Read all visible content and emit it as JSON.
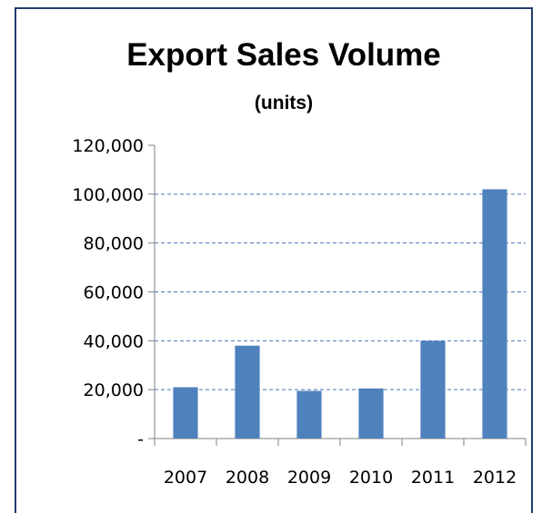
{
  "chart_data": {
    "type": "bar",
    "title": "Export Sales Volume",
    "subtitle": "(units)",
    "categories": [
      "2007",
      "2008",
      "2009",
      "2010",
      "2011",
      "2012"
    ],
    "values": [
      21000,
      38000,
      19500,
      20500,
      40000,
      102000
    ],
    "ylim": [
      0,
      120000
    ],
    "yticks": [
      0,
      20000,
      40000,
      60000,
      80000,
      100000,
      120000
    ],
    "ytick_labels": [
      "-",
      "20,000",
      "40,000",
      "60,000",
      "80,000",
      "100,000",
      "120,000"
    ],
    "grid": true,
    "legend": "none",
    "colors": {
      "bar": "#4f81bd",
      "grid": "#4a76b8",
      "axis": "#808080",
      "border": "#1f3b6e"
    }
  }
}
